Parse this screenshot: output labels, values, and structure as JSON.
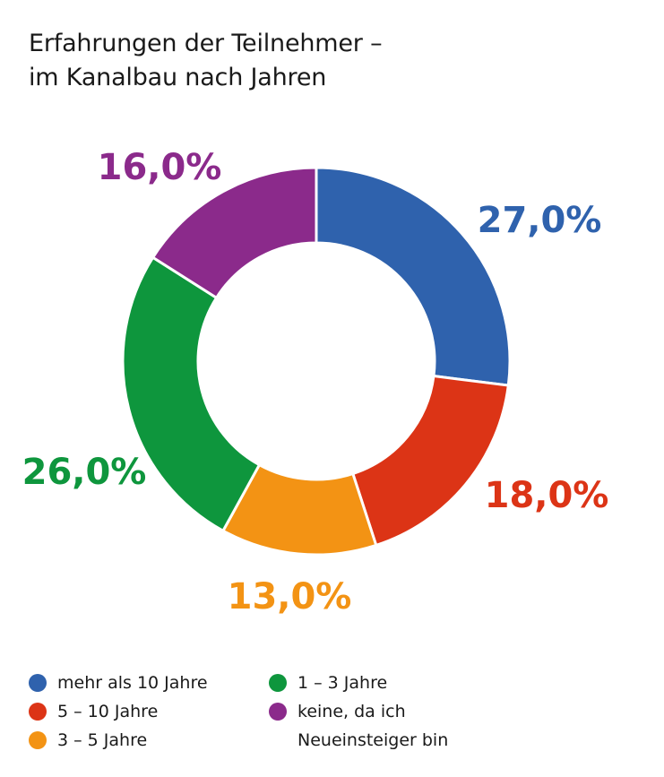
{
  "chart_data": {
    "type": "pie",
    "variant": "donut",
    "title": "Erfahrungen der Teilnehmer –",
    "subtitle": "im Kanalbau nach Jahren",
    "unit": "%",
    "slices": [
      {
        "label": "mehr als 10 Jahre",
        "value": 27.0,
        "value_label": "27,0%",
        "color": "#2f62ad"
      },
      {
        "label": "5 – 10 Jahre",
        "value": 18.0,
        "value_label": "18,0%",
        "color": "#dc3416"
      },
      {
        "label": "3 – 5 Jahre",
        "value": 13.0,
        "value_label": "13,0%",
        "color": "#f39314"
      },
      {
        "label": "1 – 3 Jahre",
        "value": 26.0,
        "value_label": "26,0%",
        "color": "#0e963d"
      },
      {
        "label": "keine, da ich",
        "label_line2": "Neueinsteiger bin",
        "value": 16.0,
        "value_label": "16,0%",
        "color": "#8b2a8b"
      }
    ],
    "legend_placement": "bottom-left"
  }
}
